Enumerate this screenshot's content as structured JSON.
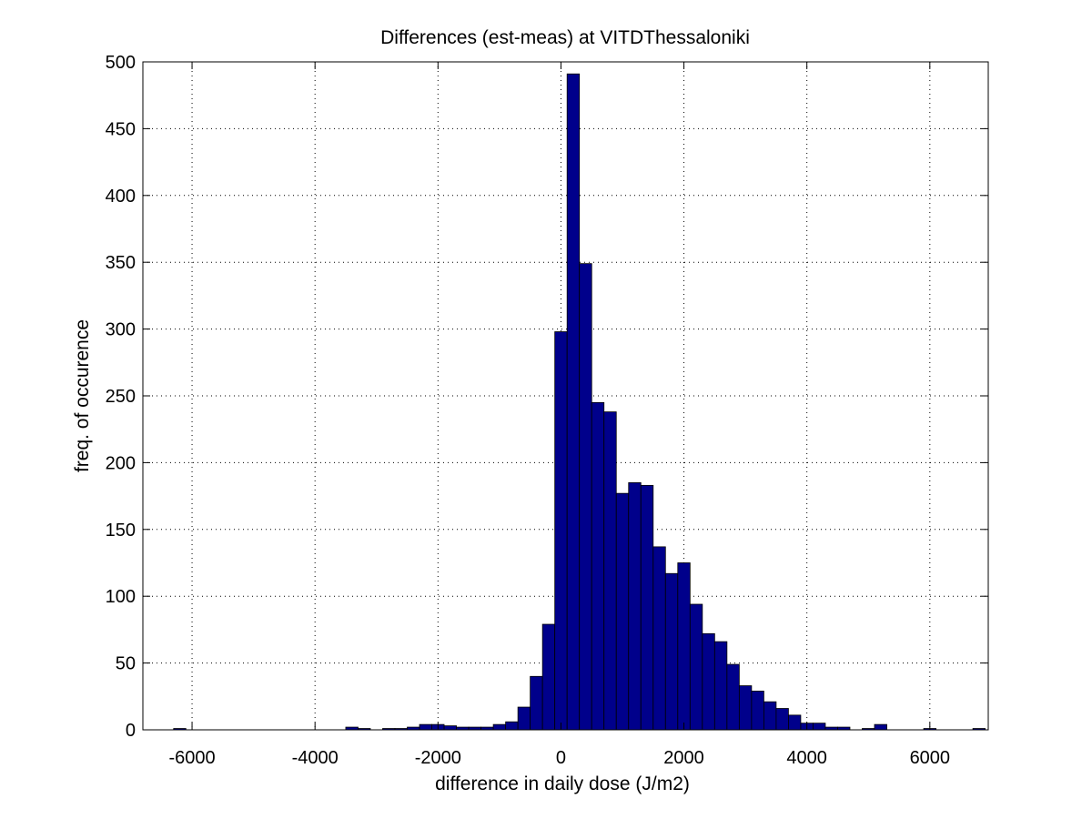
{
  "chart_data": {
    "type": "bar",
    "title": "Differences (est-meas) at VITDThessaloniki",
    "xlabel": "difference in daily dose (J/m2)",
    "ylabel": "freq. of occurence",
    "xlim": [
      -6800,
      6950
    ],
    "ylim": [
      0,
      500
    ],
    "xticks": [
      -6000,
      -4000,
      -2000,
      0,
      2000,
      4000,
      6000
    ],
    "yticks": [
      0,
      50,
      100,
      150,
      200,
      250,
      300,
      350,
      400,
      450,
      500
    ],
    "grid": true,
    "bar_color": "#00008b",
    "bin_width": 200,
    "bins": [
      {
        "x": -6200,
        "value": 1
      },
      {
        "x": -3400,
        "value": 2
      },
      {
        "x": -3200,
        "value": 1
      },
      {
        "x": -2800,
        "value": 1
      },
      {
        "x": -2600,
        "value": 1
      },
      {
        "x": -2400,
        "value": 2
      },
      {
        "x": -2200,
        "value": 4
      },
      {
        "x": -2000,
        "value": 4
      },
      {
        "x": -1800,
        "value": 3
      },
      {
        "x": -1600,
        "value": 2
      },
      {
        "x": -1400,
        "value": 2
      },
      {
        "x": -1200,
        "value": 2
      },
      {
        "x": -1000,
        "value": 4
      },
      {
        "x": -800,
        "value": 6
      },
      {
        "x": -600,
        "value": 17
      },
      {
        "x": -400,
        "value": 40
      },
      {
        "x": -200,
        "value": 79
      },
      {
        "x": 0,
        "value": 298
      },
      {
        "x": 200,
        "value": 491
      },
      {
        "x": 400,
        "value": 349
      },
      {
        "x": 600,
        "value": 245
      },
      {
        "x": 800,
        "value": 238
      },
      {
        "x": 1000,
        "value": 177
      },
      {
        "x": 1200,
        "value": 185
      },
      {
        "x": 1400,
        "value": 183
      },
      {
        "x": 1600,
        "value": 137
      },
      {
        "x": 1800,
        "value": 117
      },
      {
        "x": 2000,
        "value": 125
      },
      {
        "x": 2200,
        "value": 94
      },
      {
        "x": 2400,
        "value": 72
      },
      {
        "x": 2600,
        "value": 66
      },
      {
        "x": 2800,
        "value": 49
      },
      {
        "x": 3000,
        "value": 33
      },
      {
        "x": 3200,
        "value": 29
      },
      {
        "x": 3400,
        "value": 21
      },
      {
        "x": 3600,
        "value": 16
      },
      {
        "x": 3800,
        "value": 11
      },
      {
        "x": 4000,
        "value": 5
      },
      {
        "x": 4200,
        "value": 5
      },
      {
        "x": 4400,
        "value": 2
      },
      {
        "x": 4600,
        "value": 2
      },
      {
        "x": 5000,
        "value": 1
      },
      {
        "x": 5200,
        "value": 4
      },
      {
        "x": 6000,
        "value": 1
      },
      {
        "x": 6800,
        "value": 1
      }
    ]
  }
}
